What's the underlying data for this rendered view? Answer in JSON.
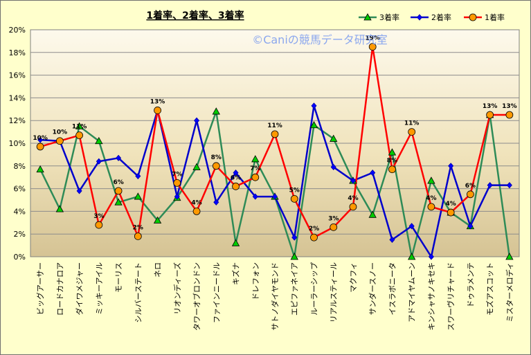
{
  "chart_data": {
    "type": "line",
    "title": "1着率、2着率、3着率",
    "watermark": "©Caniの競馬データ研究室",
    "ylim": [
      0,
      20
    ],
    "y_ticks": [
      "0%",
      "2%",
      "4%",
      "6%",
      "8%",
      "10%",
      "12%",
      "14%",
      "16%",
      "18%",
      "20%"
    ],
    "grid": true,
    "legend_position": "top-right",
    "categories": [
      "ビッグアーサー",
      "ロードカナロア",
      "ダイワメジャー",
      "ミッキーアイル",
      "モーリス",
      "シルバーステート",
      "ネロ",
      "リオンディーズ",
      "タワーオブロンドン",
      "ファインニードル",
      "キズナ",
      "ドレフォン",
      "サトノダイヤモンド",
      "エピファネイア",
      "ルーラーシップ",
      "リアルスティール",
      "マクフィ",
      "サンダースノー",
      "イスラボニータ",
      "アドマイヤムーン",
      "キンシャサノキセキ",
      "スワーヴリチャード",
      "ドゥラメンテ",
      "モズアスコット",
      "ミスターメロディ"
    ],
    "series": [
      {
        "name": "3着率",
        "color": "#2e8b57",
        "marker": "triangle",
        "marker_color": "#00cc00",
        "values": [
          7.7,
          4.2,
          11.5,
          10.2,
          4.8,
          5.3,
          3.2,
          5.2,
          7.9,
          12.8,
          1.2,
          8.6,
          5.3,
          0.0,
          11.6,
          10.4,
          6.7,
          3.7,
          9.2,
          0.0,
          6.7,
          3.9,
          2.7,
          12.5,
          0.0
        ]
      },
      {
        "name": "2着率",
        "color": "#0000cc",
        "marker": "diamond",
        "marker_color": "#0000ff",
        "values": [
          10.3,
          10.2,
          5.8,
          8.4,
          8.7,
          7.1,
          12.9,
          5.3,
          12.0,
          4.8,
          7.4,
          5.3,
          5.3,
          1.7,
          13.3,
          7.9,
          6.7,
          7.4,
          1.5,
          2.7,
          0.0,
          8.0,
          2.7,
          6.3,
          6.3
        ]
      },
      {
        "name": "1着率",
        "color": "#ff0000",
        "marker": "circle",
        "marker_color": "#ff9900",
        "values": [
          9.7,
          10.2,
          10.7,
          2.8,
          5.8,
          1.8,
          12.9,
          6.5,
          4.0,
          8.0,
          6.2,
          7.0,
          10.8,
          5.1,
          1.7,
          2.6,
          4.4,
          18.5,
          7.7,
          11.0,
          4.4,
          3.9,
          5.5,
          12.5,
          12.5
        ]
      }
    ],
    "data_labels": [
      {
        "i": 0,
        "text": "10%"
      },
      {
        "i": 1,
        "text": "10%"
      },
      {
        "i": 2,
        "text": "11%"
      },
      {
        "i": 3,
        "text": "3%"
      },
      {
        "i": 4,
        "text": "6%"
      },
      {
        "i": 5,
        "text": "2%"
      },
      {
        "i": 6,
        "text": "13%"
      },
      {
        "i": 7,
        "text": "7%"
      },
      {
        "i": 8,
        "text": "4%"
      },
      {
        "i": 9,
        "text": "8%"
      },
      {
        "i": 10,
        "text": "6%"
      },
      {
        "i": 11,
        "text": "7%"
      },
      {
        "i": 12,
        "text": "11%"
      },
      {
        "i": 13,
        "text": "5%"
      },
      {
        "i": 14,
        "text": "2%"
      },
      {
        "i": 15,
        "text": "3%"
      },
      {
        "i": 16,
        "text": "4%"
      },
      {
        "i": 17,
        "text": "19%"
      },
      {
        "i": 18,
        "text": "8%"
      },
      {
        "i": 19,
        "text": "11%"
      },
      {
        "i": 20,
        "text": "4%"
      },
      {
        "i": 21,
        "text": "4%"
      },
      {
        "i": 22,
        "text": "6%"
      },
      {
        "i": 23,
        "text": "13%"
      },
      {
        "i": 24,
        "text": "13%"
      }
    ]
  }
}
